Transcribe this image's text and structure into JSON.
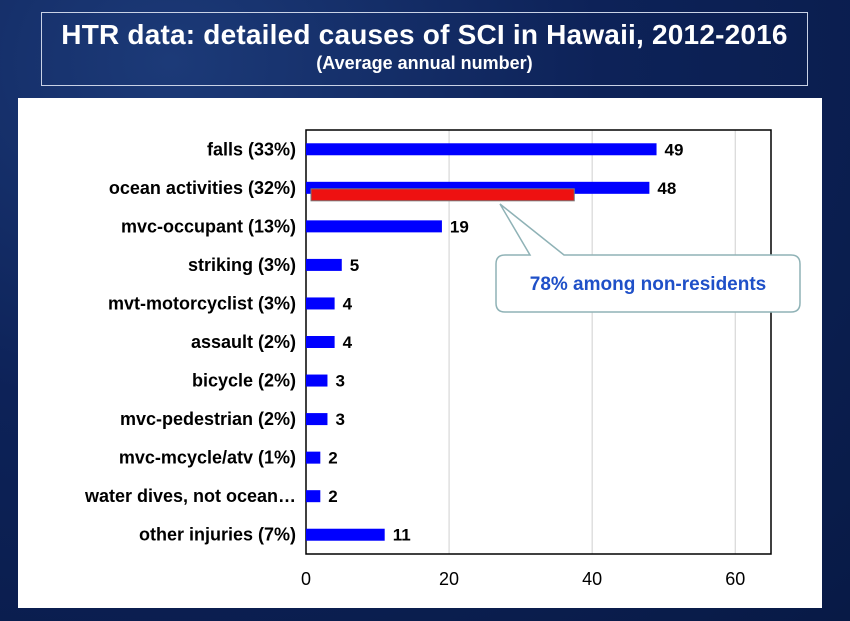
{
  "title": "HTR data: detailed causes of SCI in Hawaii, 2012-2016",
  "subtitle": "(Average annual number)",
  "callout": {
    "text": "78% among non-residents",
    "highlight_value": 37.5
  },
  "colors": {
    "bar": "#0000ff",
    "highlight": "#ee1111",
    "callout_text": "#1f50c8",
    "background": "#0d2258"
  },
  "chart_data": {
    "type": "bar",
    "orientation": "horizontal",
    "categories": [
      "falls (33%)",
      "ocean activities (32%)",
      "mvc-occupant (13%)",
      "striking (3%)",
      "mvt-motorcyclist (3%)",
      "assault (2%)",
      "bicycle (2%)",
      "mvc-pedestrian (2%)",
      "mvc-mcycle/atv (1%)",
      "water dives, not ocean…",
      "other injuries (7%)"
    ],
    "values": [
      49,
      48,
      19,
      5,
      4,
      4,
      3,
      3,
      2,
      2,
      11
    ],
    "data_labels": [
      "49",
      "48",
      "19",
      "5",
      "4",
      "4",
      "3",
      "3",
      "2",
      "2",
      "11"
    ],
    "xlim": [
      0,
      65
    ],
    "xticks": [
      0,
      20,
      40,
      60
    ],
    "xtick_labels": [
      "0",
      "20",
      "40",
      "60"
    ],
    "grid": "vertical",
    "legend": "none"
  }
}
